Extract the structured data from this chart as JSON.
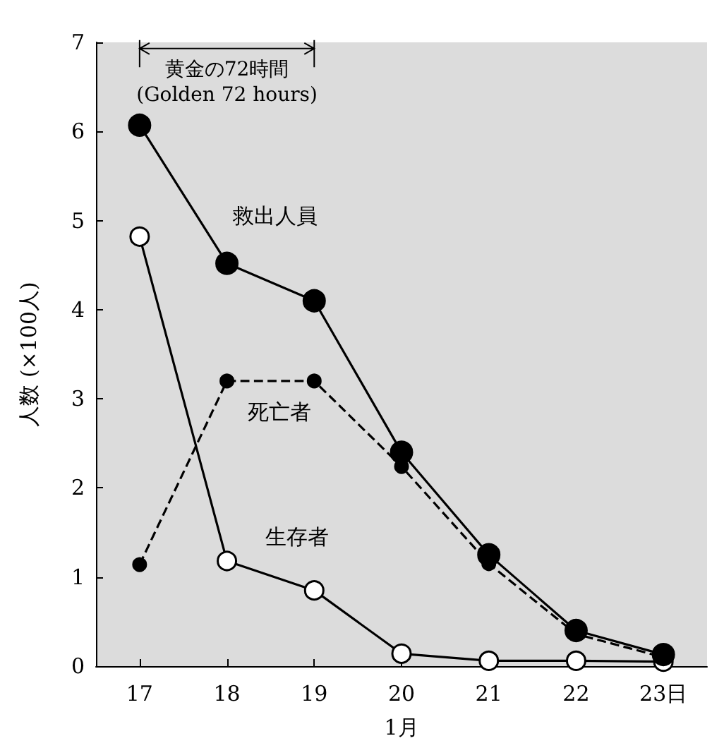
{
  "chart_data": {
    "type": "line",
    "xlabel": "1月",
    "ylabel": "人数 (×100人)",
    "categories": [
      "17",
      "18",
      "19",
      "20",
      "21",
      "22",
      "23日"
    ],
    "ylim": [
      0,
      7
    ],
    "yticks": [
      0,
      1,
      2,
      3,
      4,
      5,
      6,
      7
    ],
    "grid": false,
    "legend": false,
    "series": [
      {
        "name": "救出人員",
        "color": "#000000",
        "marker": "circle",
        "line_style": "solid",
        "values": [
          6.07,
          4.52,
          4.1,
          2.4,
          1.25,
          0.4,
          0.13
        ]
      },
      {
        "name": "死亡者",
        "color": "#000000",
        "marker": "circle",
        "line_style": "dashed",
        "values": [
          1.14,
          3.2,
          3.2,
          2.24,
          1.15,
          0.36,
          0.1
        ]
      },
      {
        "name": "生存者",
        "color": "#000000",
        "marker": "circle",
        "line_style": "solid",
        "values": [
          4.82,
          1.18,
          0.85,
          0.14,
          0.06,
          0.06,
          0.05
        ]
      }
    ],
    "annotations": [
      "黄金の72時間\n(Golden 72 hours)"
    ]
  }
}
